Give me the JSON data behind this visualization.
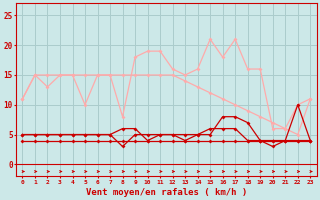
{
  "x": [
    0,
    1,
    2,
    3,
    4,
    5,
    6,
    7,
    8,
    9,
    10,
    11,
    12,
    13,
    14,
    15,
    16,
    17,
    18,
    19,
    20,
    21,
    22,
    23
  ],
  "line1": [
    4,
    4,
    4,
    4,
    4,
    4,
    4,
    4,
    4,
    4,
    4,
    4,
    4,
    4,
    4,
    4,
    4,
    4,
    4,
    4,
    4,
    4,
    4,
    4
  ],
  "line2": [
    5,
    5,
    5,
    5,
    5,
    5,
    5,
    5,
    3,
    5,
    5,
    5,
    5,
    4,
    5,
    5,
    8,
    8,
    7,
    4,
    4,
    4,
    4,
    4
  ],
  "line3": [
    5,
    5,
    5,
    5,
    5,
    5,
    5,
    5,
    6,
    6,
    4,
    5,
    5,
    5,
    5,
    6,
    6,
    6,
    4,
    4,
    3,
    4,
    10,
    4
  ],
  "line4": [
    11,
    15,
    13,
    15,
    15,
    10,
    15,
    15,
    8,
    18,
    19,
    19,
    16,
    15,
    16,
    21,
    18,
    21,
    16,
    16,
    6,
    6,
    10,
    11
  ],
  "line5": [
    11,
    15,
    15,
    15,
    15,
    15,
    15,
    15,
    15,
    15,
    15,
    15,
    15,
    14,
    13,
    12,
    11,
    10,
    9,
    8,
    7,
    6,
    5,
    11
  ],
  "bg_color": "#cce8e8",
  "grid_color": "#aacccc",
  "line1_color": "#cc0000",
  "line2_color": "#cc0000",
  "line3_color": "#cc0000",
  "line4_color": "#ffaaaa",
  "line5_color": "#ffaaaa",
  "arrow_color": "#cc0000",
  "xlabel": "Vent moyen/en rafales ( km/h )",
  "xlabel_color": "#cc0000",
  "tick_color": "#cc0000",
  "spine_color": "#cc0000",
  "ylim": [
    -2,
    27
  ],
  "xlim": [
    -0.5,
    23.5
  ]
}
